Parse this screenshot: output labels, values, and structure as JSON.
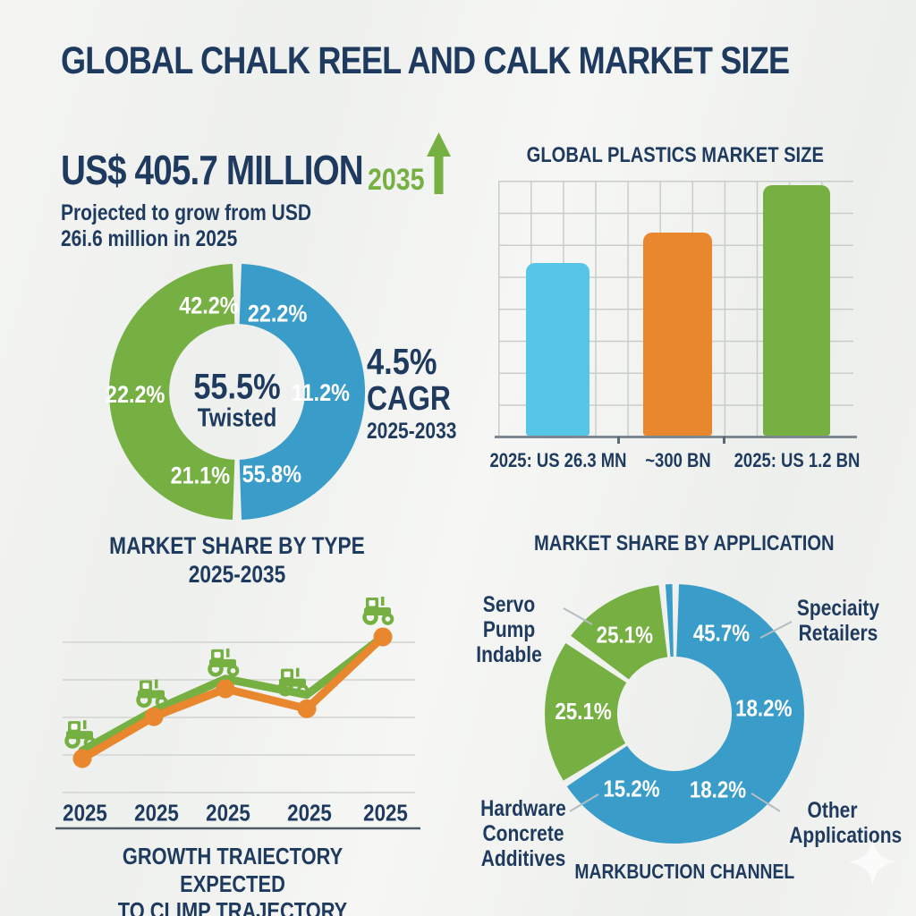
{
  "title": "GLOBAL CHALK REEL AND CALK MARKET SIZE",
  "hero": {
    "headline": "US$ 405.7 MILLION",
    "year": "2035",
    "subline1": "Projected to grow from USD",
    "subline2": "26i.6 million in 2025"
  },
  "cagr": {
    "value": "4.5%",
    "label": "CAGR",
    "range": "2025-2033"
  },
  "colors": {
    "navy": "#1e3a5e",
    "green": "#76b043",
    "blue": "#3a9cc9",
    "light_blue": "#56c6e8",
    "orange": "#e8872e",
    "grid": "#c9cdc9",
    "grid_light": "#d9dbd7",
    "axis": "#4f5b66",
    "leader": "#b4bcc3",
    "white": "#ffffff"
  },
  "chart_data": [
    {
      "type": "donut",
      "title": "MARKET SHARE BY TYPE",
      "subtitle": "2025-2035",
      "center": {
        "value": "55.5%",
        "label": "Twisted"
      },
      "legend_position": "inside-ring",
      "segments": [
        {
          "color": "green",
          "start": 182,
          "end": 358,
          "labels": [
            {
              "text": "42.2%",
              "a": 342,
              "d": 105
            },
            {
              "text": "22.2%",
              "a": 269,
              "d": 117
            },
            {
              "text": "21.1%",
              "a": 204,
              "d": 104
            }
          ]
        },
        {
          "color": "blue",
          "start": 2,
          "end": 178,
          "labels": [
            {
              "text": "22.2%",
              "a": 27,
              "d": 102
            },
            {
              "text": "11.2%",
              "a": 90,
              "d": 96
            },
            {
              "text": "55.8%",
              "a": 157,
              "d": 102
            }
          ]
        }
      ]
    },
    {
      "type": "bar",
      "title": "GLOBAL PLASTICS MARKET SIZE",
      "categories": [
        "2025: US 26.3 MN",
        "~300 BN",
        "2025: US 1.2 BN"
      ],
      "values_relative": [
        69,
        81,
        100
      ],
      "ylim": [
        0,
        100
      ],
      "grid": true,
      "bar_colors": [
        "light_blue",
        "orange",
        "green"
      ]
    },
    {
      "type": "line",
      "caption_line1": "GROWTH TRAIECTORY EXPECTED",
      "caption_line2": "TO CLIMP TRAJECTORY",
      "x_labels": [
        "2025",
        "2025",
        "2025",
        "2025",
        "2025"
      ],
      "ylim": [
        0,
        100
      ],
      "grid": true,
      "series": [
        {
          "name": "green-line",
          "color": "green",
          "values": [
            39,
            59,
            75,
            67,
            96
          ]
        },
        {
          "name": "orange-line",
          "color": "orange",
          "values": [
            35,
            56,
            70,
            60,
            96
          ]
        }
      ],
      "point_icon": "tractor"
    },
    {
      "type": "donut",
      "title": "MARKET SHARE BY APPLICATION",
      "footer": "MARKBUCTION CHANNEL",
      "segments": [
        {
          "color": "blue",
          "start": 2,
          "end": 236,
          "labels": [
            {
              "text": "45.7%",
              "a": 30,
              "d": 105
            },
            {
              "text": "18.2%",
              "a": 86,
              "d": 100
            },
            {
              "text": "18.2%",
              "a": 150,
              "d": 97
            },
            {
              "text": "15.2%",
              "a": 210,
              "d": 96
            }
          ]
        },
        {
          "color": "green",
          "start": 239,
          "end": 303,
          "labels": [
            {
              "text": "25.1%",
              "a": 272,
              "d": 102
            }
          ]
        },
        {
          "color": "green",
          "start": 307,
          "end": 353,
          "labels": [
            {
              "text": "25.1%",
              "a": 328,
              "d": 105
            }
          ]
        },
        {
          "color": "blue",
          "start": 356,
          "end": 359,
          "labels": []
        }
      ],
      "outer_labels": [
        {
          "line1": "Servo Pump",
          "line2": "Indable"
        },
        {
          "line1": "Speciaity",
          "line2": "Retailers"
        },
        {
          "line1": "Hardware",
          "line2": "Concrete Additives"
        },
        {
          "line1": "Other",
          "line2": "Applications"
        }
      ]
    }
  ]
}
